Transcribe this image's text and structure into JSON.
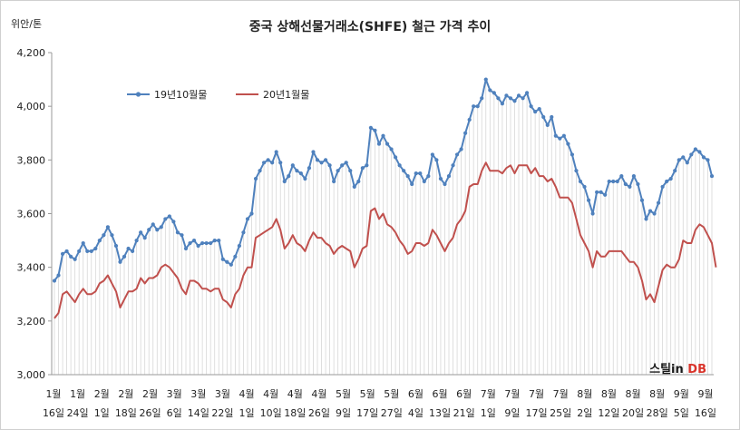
{
  "chart_data": {
    "type": "line",
    "title": "중국 상해선물거래소(SHFE) 철근 가격 추이",
    "unit_label": "위안/톤",
    "ylim": [
      3000,
      4200
    ],
    "y_ticks": [
      "3,000",
      "3,200",
      "3,400",
      "3,600",
      "3,800",
      "4,000",
      "4,200"
    ],
    "x_tick_labels": [
      [
        "1월",
        "16일"
      ],
      [
        "1월",
        "24일"
      ],
      [
        "2월",
        "1일"
      ],
      [
        "2월",
        "18일"
      ],
      [
        "2월",
        "26일"
      ],
      [
        "3월",
        "6일"
      ],
      [
        "3월",
        "14일"
      ],
      [
        "3월",
        "22일"
      ],
      [
        "4월",
        "1일"
      ],
      [
        "4월",
        "10일"
      ],
      [
        "4월",
        "18일"
      ],
      [
        "4월",
        "26일"
      ],
      [
        "5월",
        "9일"
      ],
      [
        "5월",
        "17일"
      ],
      [
        "5월",
        "27일"
      ],
      [
        "6월",
        "4일"
      ],
      [
        "6월",
        "13일"
      ],
      [
        "6월",
        "21일"
      ],
      [
        "7월",
        "1일"
      ],
      [
        "7월",
        "9일"
      ],
      [
        "7월",
        "17일"
      ],
      [
        "7월",
        "25일"
      ],
      [
        "8월",
        "2일"
      ],
      [
        "8월",
        "12일"
      ],
      [
        "8월",
        "20일"
      ],
      [
        "8월",
        "28일"
      ],
      [
        "9월",
        "5일"
      ],
      [
        "9월",
        "16일"
      ]
    ],
    "legend_position": "top-left",
    "series": [
      {
        "name": "19년10월물",
        "color": "#4f81bd",
        "values": [
          3350,
          3370,
          3450,
          3460,
          3440,
          3430,
          3460,
          3490,
          3460,
          3460,
          3470,
          3500,
          3520,
          3550,
          3520,
          3480,
          3420,
          3440,
          3470,
          3460,
          3500,
          3530,
          3510,
          3540,
          3560,
          3540,
          3550,
          3580,
          3590,
          3570,
          3530,
          3520,
          3470,
          3490,
          3500,
          3480,
          3490,
          3490,
          3490,
          3500,
          3500,
          3430,
          3420,
          3410,
          3440,
          3480,
          3530,
          3580,
          3600,
          3730,
          3760,
          3790,
          3800,
          3790,
          3830,
          3790,
          3720,
          3740,
          3780,
          3760,
          3750,
          3730,
          3770,
          3830,
          3800,
          3790,
          3800,
          3780,
          3720,
          3760,
          3780,
          3790,
          3760,
          3700,
          3720,
          3770,
          3780,
          3920,
          3910,
          3860,
          3890,
          3860,
          3840,
          3810,
          3780,
          3760,
          3740,
          3710,
          3750,
          3750,
          3720,
          3740,
          3820,
          3800,
          3730,
          3710,
          3740,
          3780,
          3820,
          3840,
          3900,
          3950,
          4000,
          4000,
          4030,
          4100,
          4060,
          4050,
          4030,
          4010,
          4040,
          4030,
          4020,
          4040,
          4030,
          4050,
          4000,
          3980,
          3990,
          3960,
          3930,
          3960,
          3890,
          3880,
          3890,
          3860,
          3820,
          3760,
          3720,
          3700,
          3650,
          3600,
          3680,
          3680,
          3670,
          3720,
          3720,
          3720,
          3740,
          3710,
          3700,
          3740,
          3710,
          3650,
          3580,
          3610,
          3600,
          3640,
          3700,
          3720,
          3730,
          3760,
          3800,
          3810,
          3790,
          3820,
          3840,
          3830,
          3810,
          3800,
          3740
        ]
      },
      {
        "name": "20년1월물",
        "color": "#c0504d",
        "values": [
          3210,
          3230,
          3300,
          3310,
          3290,
          3270,
          3300,
          3320,
          3300,
          3300,
          3310,
          3340,
          3350,
          3370,
          3340,
          3310,
          3250,
          3280,
          3310,
          3310,
          3320,
          3360,
          3340,
          3360,
          3360,
          3370,
          3400,
          3410,
          3400,
          3380,
          3360,
          3320,
          3300,
          3350,
          3350,
          3340,
          3320,
          3320,
          3310,
          3320,
          3320,
          3280,
          3270,
          3250,
          3300,
          3320,
          3370,
          3400,
          3400,
          3510,
          3520,
          3530,
          3540,
          3550,
          3580,
          3540,
          3470,
          3490,
          3520,
          3490,
          3480,
          3460,
          3500,
          3530,
          3510,
          3510,
          3490,
          3480,
          3450,
          3470,
          3480,
          3470,
          3460,
          3400,
          3430,
          3470,
          3480,
          3610,
          3620,
          3580,
          3600,
          3560,
          3550,
          3530,
          3500,
          3480,
          3450,
          3460,
          3490,
          3490,
          3480,
          3490,
          3540,
          3520,
          3490,
          3460,
          3490,
          3510,
          3560,
          3580,
          3610,
          3700,
          3710,
          3710,
          3760,
          3790,
          3760,
          3760,
          3760,
          3750,
          3770,
          3780,
          3750,
          3780,
          3780,
          3780,
          3750,
          3770,
          3740,
          3740,
          3720,
          3730,
          3700,
          3660,
          3660,
          3660,
          3640,
          3580,
          3520,
          3490,
          3460,
          3400,
          3460,
          3440,
          3440,
          3460,
          3460,
          3460,
          3460,
          3440,
          3420,
          3420,
          3400,
          3350,
          3280,
          3300,
          3270,
          3330,
          3390,
          3410,
          3400,
          3400,
          3430,
          3500,
          3490,
          3490,
          3540,
          3560,
          3550,
          3520,
          3490,
          3400
        ]
      }
    ]
  },
  "watermark": "스틸in DB"
}
